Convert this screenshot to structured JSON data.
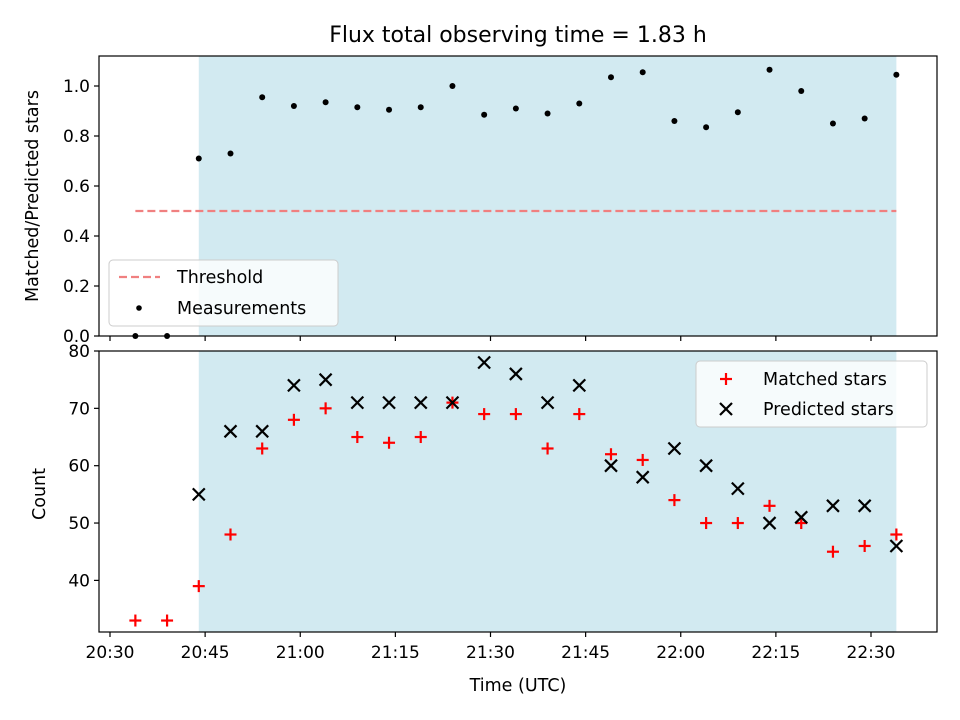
{
  "chart_data": [
    {
      "type": "scatter",
      "title": "Flux total observing time = 1.83 h",
      "xlabel": "",
      "ylabel": "Matched/Predicted stars",
      "ylim": [
        0,
        1.12
      ],
      "yticks": [
        "0.0",
        "0.2",
        "0.4",
        "0.6",
        "0.8",
        "1.0"
      ],
      "shaded_span": {
        "start": "20:44",
        "end": "22:34",
        "color": "#add8e6"
      },
      "legend_position": "lower-left",
      "series": [
        {
          "name": "Threshold",
          "style": "dashed-line",
          "color": "#f08080",
          "x": [
            "20:34",
            "22:34"
          ],
          "values": [
            0.5,
            0.5
          ]
        },
        {
          "name": "Measurements",
          "style": "dot",
          "color": "#000000",
          "x": [
            "20:34",
            "20:39",
            "20:44",
            "20:49",
            "20:54",
            "20:59",
            "21:04",
            "21:09",
            "21:14",
            "21:19",
            "21:24",
            "21:29",
            "21:34",
            "21:39",
            "21:44",
            "21:49",
            "21:54",
            "21:59",
            "22:04",
            "22:09",
            "22:14",
            "22:19",
            "22:24",
            "22:29",
            "22:34"
          ],
          "values": [
            0.0,
            0.0,
            0.71,
            0.73,
            0.955,
            0.92,
            0.935,
            0.915,
            0.905,
            0.915,
            1.0,
            0.885,
            0.91,
            0.89,
            0.93,
            1.035,
            1.055,
            0.86,
            0.835,
            0.895,
            1.065,
            0.98,
            0.85,
            0.87,
            1.045
          ]
        }
      ]
    },
    {
      "type": "scatter",
      "title": "",
      "xlabel": "Time (UTC)",
      "ylabel": "Count",
      "ylim": [
        31,
        80
      ],
      "yticks": [
        "40",
        "50",
        "60",
        "70",
        "80"
      ],
      "xticks": [
        "20:30",
        "20:45",
        "21:00",
        "21:15",
        "21:30",
        "21:45",
        "22:00",
        "22:15",
        "22:30"
      ],
      "shaded_span": {
        "start": "20:44",
        "end": "22:34",
        "color": "#add8e6"
      },
      "legend_position": "top-right",
      "series": [
        {
          "name": "Matched stars",
          "style": "plus",
          "color": "#ff0000",
          "x": [
            "20:34",
            "20:39",
            "20:44",
            "20:49",
            "20:54",
            "20:59",
            "21:04",
            "21:09",
            "21:14",
            "21:19",
            "21:24",
            "21:29",
            "21:34",
            "21:39",
            "21:44",
            "21:49",
            "21:54",
            "21:59",
            "22:04",
            "22:09",
            "22:14",
            "22:19",
            "22:24",
            "22:29",
            "22:34"
          ],
          "values": [
            33,
            33,
            39,
            48,
            63,
            68,
            70,
            65,
            64,
            65,
            71,
            69,
            69,
            63,
            69,
            62,
            61,
            54,
            50,
            50,
            53,
            50,
            45,
            46,
            48
          ]
        },
        {
          "name": "Predicted stars",
          "style": "x",
          "color": "#000000",
          "x": [
            "20:44",
            "20:49",
            "20:54",
            "20:59",
            "21:04",
            "21:09",
            "21:14",
            "21:19",
            "21:24",
            "21:29",
            "21:34",
            "21:39",
            "21:44",
            "21:49",
            "21:54",
            "21:59",
            "22:04",
            "22:09",
            "22:14",
            "22:19",
            "22:24",
            "22:29",
            "22:34"
          ],
          "values": [
            55,
            66,
            66,
            74,
            75,
            71,
            71,
            71,
            71,
            78,
            76,
            71,
            74,
            60,
            58,
            63,
            60,
            56,
            50,
            51,
            53,
            53,
            46
          ]
        }
      ]
    }
  ]
}
